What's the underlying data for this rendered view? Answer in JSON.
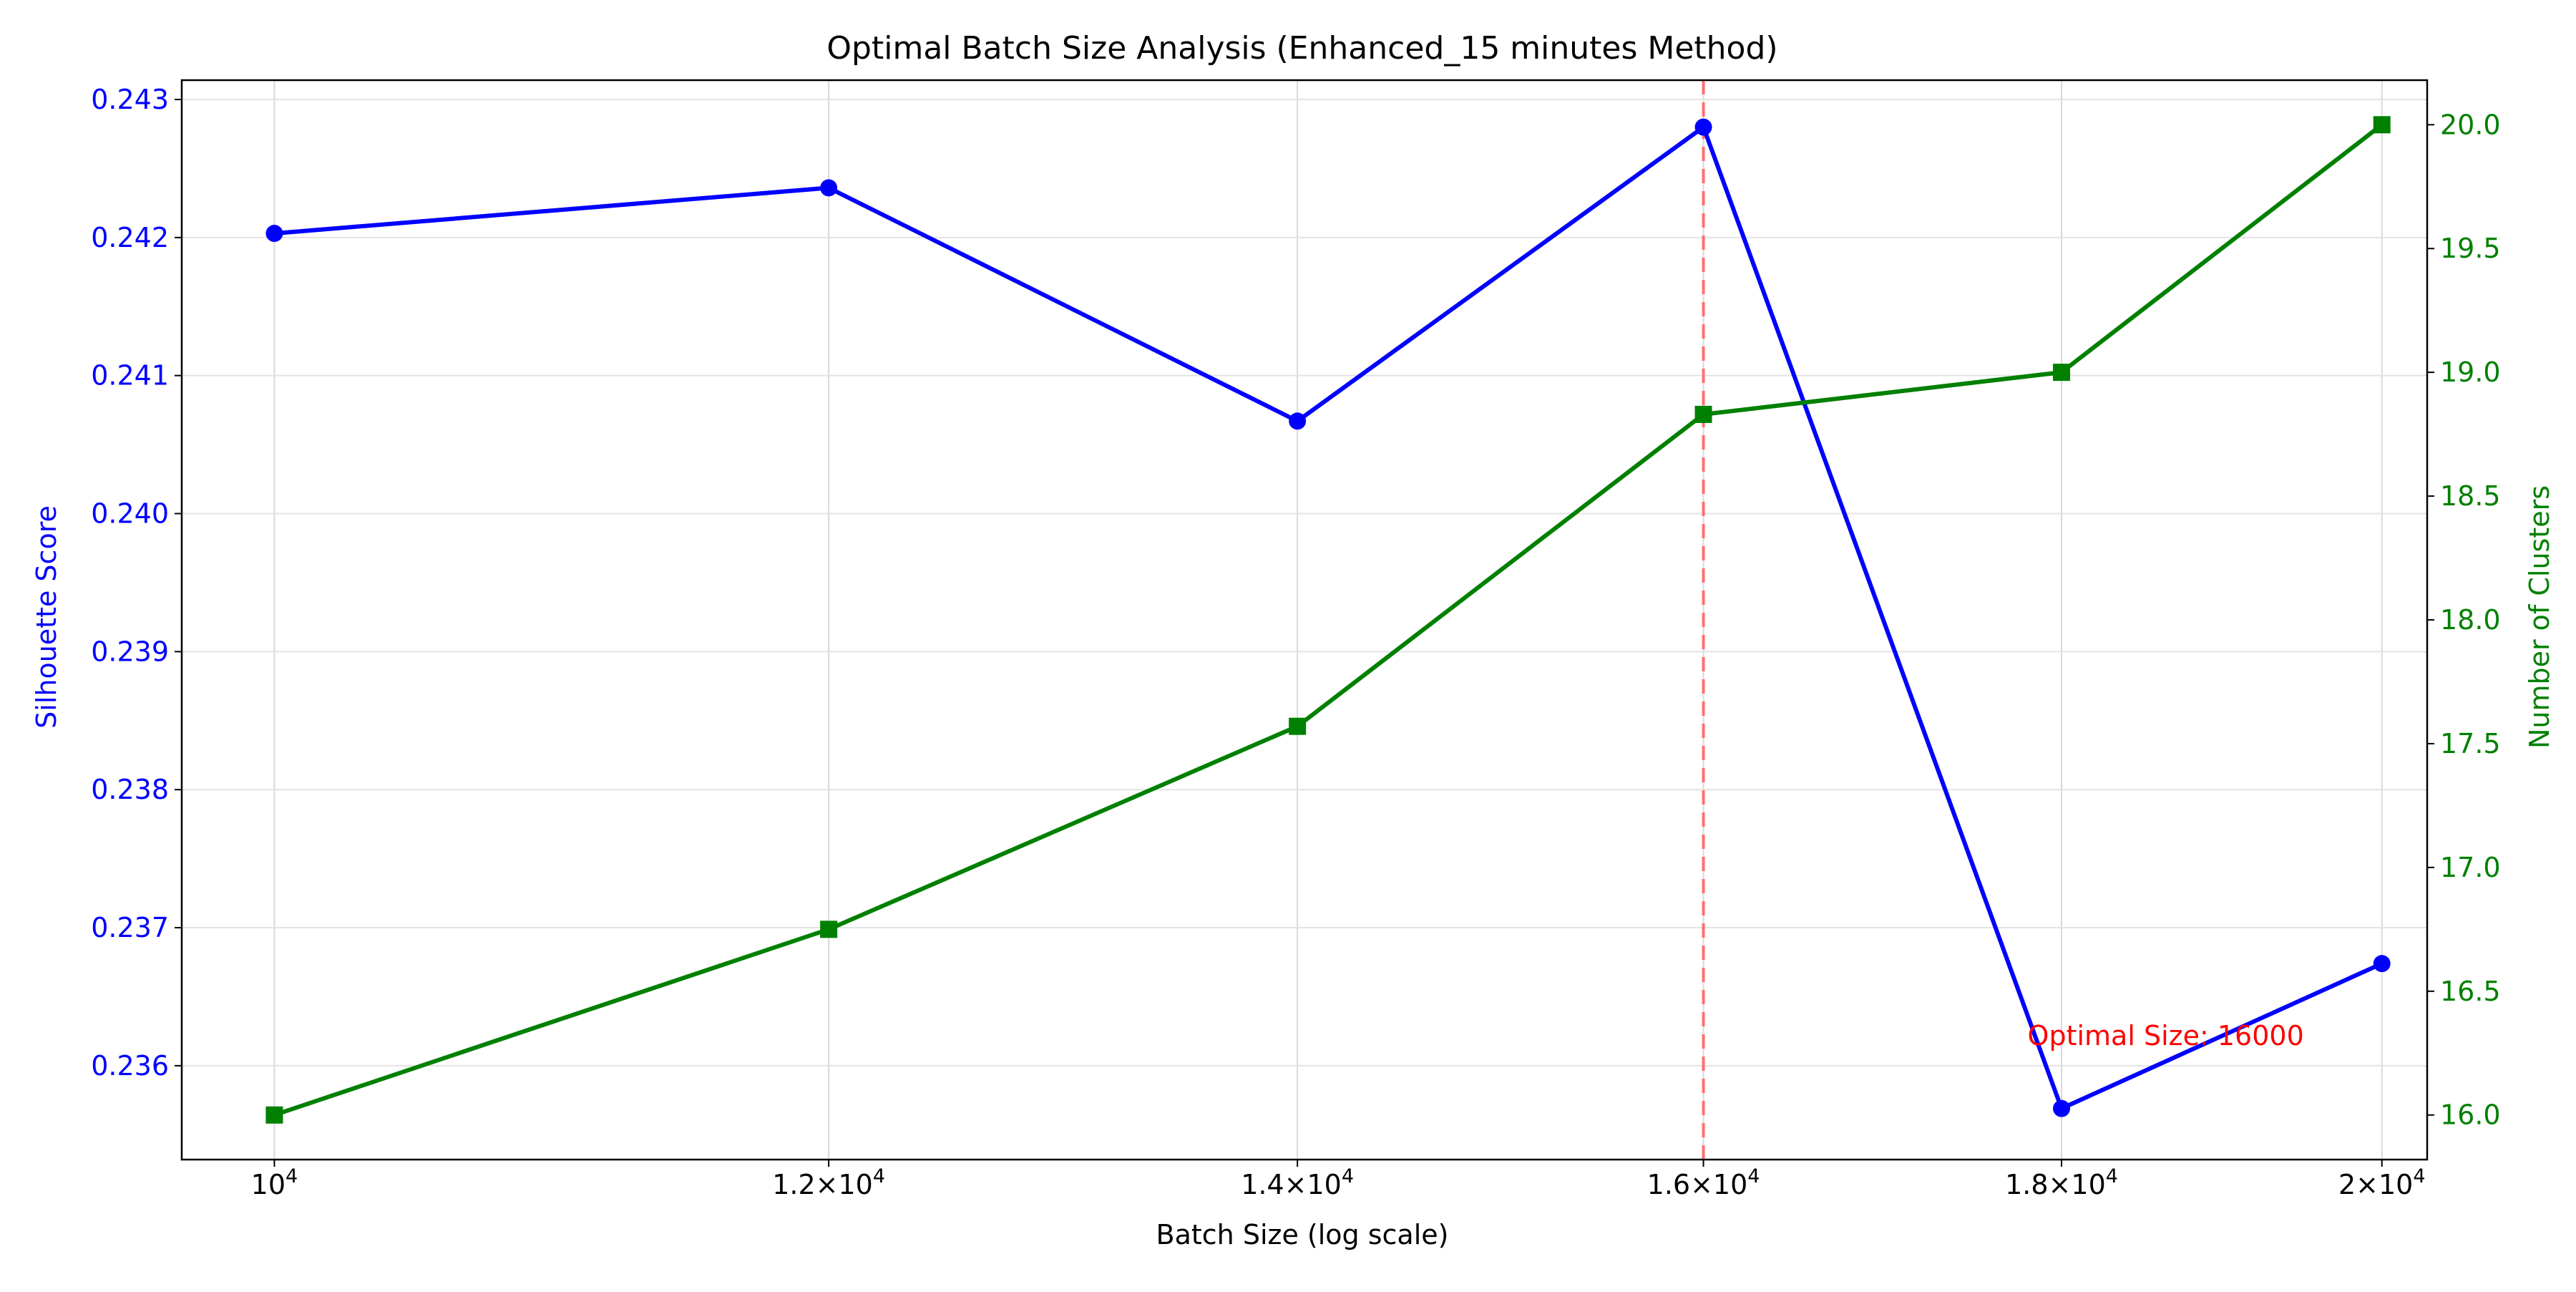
{
  "chart_data": {
    "type": "line",
    "title": "Optimal Batch Size Analysis (Enhanced_15 minutes Method)",
    "xlabel": "Batch Size (log scale)",
    "xscale": "log",
    "xlim": [
      9700,
      20300
    ],
    "x": [
      10000,
      12000,
      14000,
      16000,
      18000,
      20000
    ],
    "x_tick_labels": [
      {
        "value": 10000,
        "mant": "",
        "exp": "4"
      },
      {
        "value": 12000,
        "mant": "1.2",
        "exp": "4"
      },
      {
        "value": 14000,
        "mant": "1.4",
        "exp": "4"
      },
      {
        "value": 16000,
        "mant": "1.6",
        "exp": "4"
      },
      {
        "value": 18000,
        "mant": "1.8",
        "exp": "4"
      },
      {
        "value": 20000,
        "mant": "2",
        "exp": "4"
      }
    ],
    "grid": true,
    "y_left": {
      "label": "Silhouette Score",
      "color": "#0000ff",
      "ylim": [
        0.23532,
        0.24314
      ],
      "ticks": [
        0.236,
        0.237,
        0.238,
        0.239,
        0.24,
        0.241,
        0.242,
        0.243
      ],
      "tick_labels": [
        "0.236",
        "0.237",
        "0.238",
        "0.239",
        "0.240",
        "0.241",
        "0.242",
        "0.243"
      ]
    },
    "y_right": {
      "label": "Number of Clusters",
      "color": "#008000",
      "ylim": [
        15.82,
        20.18
      ],
      "ticks": [
        16.0,
        16.5,
        17.0,
        17.5,
        18.0,
        18.5,
        19.0,
        19.5,
        20.0
      ],
      "tick_labels": [
        "16.0",
        "16.5",
        "17.0",
        "17.5",
        "18.0",
        "18.5",
        "19.0",
        "19.5",
        "20.0"
      ]
    },
    "series": [
      {
        "name": "Silhouette Score",
        "axis": "left",
        "color": "#0000ff",
        "marker": "circle",
        "values": [
          0.24203,
          0.24236,
          0.24067,
          0.2428,
          0.23569,
          0.23674
        ]
      },
      {
        "name": "Number of Clusters",
        "axis": "right",
        "color": "#008000",
        "marker": "square",
        "values": [
          16.0,
          16.75,
          17.57,
          18.83,
          19.0,
          20.0
        ]
      }
    ],
    "reference_line": {
      "x": 16000,
      "color": "#ff7070",
      "style": "dashed"
    },
    "annotation": {
      "text": "Optimal Size: 16000",
      "x": 17800,
      "y": 0.23615,
      "color": "#ff0000"
    }
  }
}
